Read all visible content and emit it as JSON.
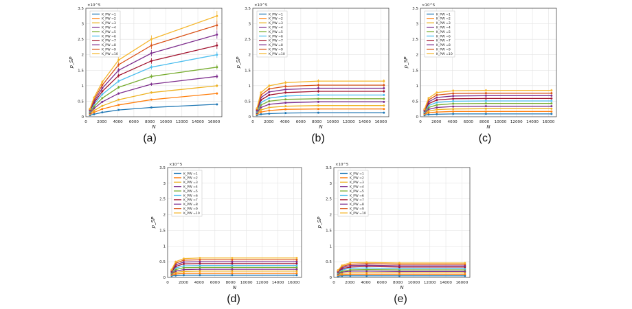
{
  "figure": {
    "x_label": "N",
    "y_label": "p_SP",
    "exponent_label": "×10^5",
    "series_prefix": "K_PW",
    "legend_names": [
      "=1",
      "=2",
      "=3",
      "=4",
      "=5",
      "=6",
      "=7",
      "=8",
      "=9",
      "=10"
    ],
    "colors": [
      "#1f77b4",
      "#ff7f0e",
      "#edb120",
      "#7e2f8e",
      "#77ac30",
      "#4dbeee",
      "#a2142f",
      "#7e2f8e",
      "#d95319",
      "#f5b72f"
    ]
  },
  "chart_data": [
    {
      "panel": "(a)",
      "type": "line",
      "xlabel": "N",
      "ylabel": "p_SP",
      "x": [
        512,
        1024,
        2048,
        4096,
        8192,
        16384
      ],
      "xlim": [
        0,
        17000
      ],
      "ylim": [
        0,
        3.5
      ],
      "xticks": [
        0,
        2000,
        4000,
        6000,
        8000,
        10000,
        12000,
        14000,
        16000
      ],
      "yticks": [
        0,
        0.5,
        1,
        1.5,
        2,
        2.5,
        3,
        3.5
      ],
      "series": [
        {
          "name": "K_PW =1",
          "values": [
            0.05,
            0.08,
            0.14,
            0.22,
            0.3,
            0.4
          ]
        },
        {
          "name": "K_PW =2",
          "values": [
            0.08,
            0.14,
            0.25,
            0.38,
            0.55,
            0.75
          ]
        },
        {
          "name": "K_PW =3",
          "values": [
            0.1,
            0.2,
            0.35,
            0.55,
            0.78,
            1.0
          ]
        },
        {
          "name": "K_PW =4",
          "values": [
            0.12,
            0.27,
            0.48,
            0.75,
            1.05,
            1.3
          ]
        },
        {
          "name": "K_PW =5",
          "values": [
            0.15,
            0.33,
            0.6,
            0.95,
            1.3,
            1.6
          ]
        },
        {
          "name": "K_PW =6",
          "values": [
            0.18,
            0.4,
            0.72,
            1.15,
            1.6,
            2.0
          ]
        },
        {
          "name": "K_PW =7",
          "values": [
            0.2,
            0.45,
            0.82,
            1.33,
            1.8,
            2.3
          ]
        },
        {
          "name": "K_PW =8",
          "values": [
            0.22,
            0.5,
            0.92,
            1.5,
            2.05,
            2.65
          ]
        },
        {
          "name": "K_PW =9",
          "values": [
            0.24,
            0.56,
            1.02,
            1.68,
            2.3,
            2.95
          ]
        },
        {
          "name": "K_PW =10",
          "values": [
            0.26,
            0.62,
            1.12,
            1.83,
            2.5,
            3.25
          ]
        }
      ]
    },
    {
      "panel": "(b)",
      "type": "line",
      "xlabel": "N",
      "ylabel": "p_SP",
      "x": [
        512,
        1024,
        2048,
        4096,
        8192,
        16384
      ],
      "xlim": [
        0,
        17000
      ],
      "ylim": [
        0,
        3.5
      ],
      "xticks": [
        0,
        2000,
        4000,
        6000,
        8000,
        10000,
        12000,
        14000,
        16000
      ],
      "yticks": [
        0,
        0.5,
        1,
        1.5,
        2,
        2.5,
        3,
        3.5
      ],
      "series": [
        {
          "name": "K_PW =1",
          "values": [
            0.05,
            0.08,
            0.1,
            0.12,
            0.13,
            0.13
          ]
        },
        {
          "name": "K_PW =2",
          "values": [
            0.08,
            0.15,
            0.2,
            0.24,
            0.25,
            0.25
          ]
        },
        {
          "name": "K_PW =3",
          "values": [
            0.1,
            0.22,
            0.3,
            0.34,
            0.36,
            0.36
          ]
        },
        {
          "name": "K_PW =4",
          "values": [
            0.12,
            0.3,
            0.4,
            0.45,
            0.48,
            0.48
          ]
        },
        {
          "name": "K_PW =5",
          "values": [
            0.15,
            0.38,
            0.5,
            0.56,
            0.58,
            0.58
          ]
        },
        {
          "name": "K_PW =6",
          "values": [
            0.17,
            0.46,
            0.6,
            0.67,
            0.7,
            0.7
          ]
        },
        {
          "name": "K_PW =7",
          "values": [
            0.2,
            0.54,
            0.7,
            0.78,
            0.82,
            0.82
          ]
        },
        {
          "name": "K_PW =8",
          "values": [
            0.22,
            0.62,
            0.8,
            0.88,
            0.92,
            0.92
          ]
        },
        {
          "name": "K_PW =9",
          "values": [
            0.25,
            0.7,
            0.9,
            0.98,
            1.02,
            1.02
          ]
        },
        {
          "name": "K_PW =10",
          "values": [
            0.27,
            0.78,
            1.0,
            1.1,
            1.15,
            1.15
          ]
        }
      ]
    },
    {
      "panel": "(c)",
      "type": "line",
      "xlabel": "N",
      "ylabel": "p_SP",
      "x": [
        512,
        1024,
        2048,
        4096,
        8192,
        16384
      ],
      "xlim": [
        0,
        17000
      ],
      "ylim": [
        0,
        3.5
      ],
      "xticks": [
        0,
        2000,
        4000,
        6000,
        8000,
        10000,
        12000,
        14000,
        16000
      ],
      "yticks": [
        0,
        0.5,
        1,
        1.5,
        2,
        2.5,
        3,
        3.5
      ],
      "series": [
        {
          "name": "K_PW =1",
          "values": [
            0.05,
            0.07,
            0.08,
            0.09,
            0.09,
            0.09
          ]
        },
        {
          "name": "K_PW =2",
          "values": [
            0.08,
            0.13,
            0.15,
            0.17,
            0.17,
            0.17
          ]
        },
        {
          "name": "K_PW =3",
          "values": [
            0.1,
            0.18,
            0.23,
            0.25,
            0.26,
            0.26
          ]
        },
        {
          "name": "K_PW =4",
          "values": [
            0.12,
            0.24,
            0.3,
            0.33,
            0.34,
            0.34
          ]
        },
        {
          "name": "K_PW =5",
          "values": [
            0.14,
            0.3,
            0.38,
            0.42,
            0.43,
            0.43
          ]
        },
        {
          "name": "K_PW =6",
          "values": [
            0.16,
            0.36,
            0.46,
            0.5,
            0.51,
            0.51
          ]
        },
        {
          "name": "K_PW =7",
          "values": [
            0.19,
            0.42,
            0.54,
            0.58,
            0.59,
            0.59
          ]
        },
        {
          "name": "K_PW =8",
          "values": [
            0.21,
            0.48,
            0.62,
            0.67,
            0.68,
            0.68
          ]
        },
        {
          "name": "K_PW =9",
          "values": [
            0.23,
            0.54,
            0.7,
            0.75,
            0.76,
            0.76
          ]
        },
        {
          "name": "K_PW =10",
          "values": [
            0.25,
            0.6,
            0.78,
            0.84,
            0.85,
            0.85
          ]
        }
      ]
    },
    {
      "panel": "(d)",
      "type": "line",
      "xlabel": "N",
      "ylabel": "p_SP",
      "x": [
        512,
        1024,
        2048,
        4096,
        8192,
        16384
      ],
      "xlim": [
        0,
        17000
      ],
      "ylim": [
        0,
        3.5
      ],
      "xticks": [
        0,
        2000,
        4000,
        6000,
        8000,
        10000,
        12000,
        14000,
        16000
      ],
      "yticks": [
        0,
        0.5,
        1,
        1.5,
        2,
        2.5,
        3,
        3.5
      ],
      "series": [
        {
          "name": "K_PW =1",
          "values": [
            0.05,
            0.06,
            0.07,
            0.07,
            0.07,
            0.07
          ]
        },
        {
          "name": "K_PW =2",
          "values": [
            0.08,
            0.11,
            0.13,
            0.13,
            0.13,
            0.13
          ]
        },
        {
          "name": "K_PW =3",
          "values": [
            0.1,
            0.16,
            0.19,
            0.2,
            0.2,
            0.2
          ]
        },
        {
          "name": "K_PW =4",
          "values": [
            0.12,
            0.2,
            0.25,
            0.26,
            0.26,
            0.26
          ]
        },
        {
          "name": "K_PW =5",
          "values": [
            0.14,
            0.25,
            0.31,
            0.32,
            0.32,
            0.32
          ]
        },
        {
          "name": "K_PW =6",
          "values": [
            0.16,
            0.3,
            0.37,
            0.38,
            0.38,
            0.38
          ]
        },
        {
          "name": "K_PW =7",
          "values": [
            0.18,
            0.35,
            0.43,
            0.44,
            0.44,
            0.44
          ]
        },
        {
          "name": "K_PW =8",
          "values": [
            0.21,
            0.4,
            0.49,
            0.5,
            0.5,
            0.5
          ]
        },
        {
          "name": "K_PW =9",
          "values": [
            0.23,
            0.45,
            0.55,
            0.56,
            0.56,
            0.56
          ]
        },
        {
          "name": "K_PW =10",
          "values": [
            0.25,
            0.5,
            0.6,
            0.62,
            0.62,
            0.62
          ]
        }
      ]
    },
    {
      "panel": "(e)",
      "type": "line",
      "xlabel": "N",
      "ylabel": "p_SP",
      "x": [
        512,
        1024,
        2048,
        4096,
        8192,
        16384
      ],
      "xlim": [
        0,
        17000
      ],
      "ylim": [
        0,
        3.5
      ],
      "xticks": [
        0,
        2000,
        4000,
        6000,
        8000,
        10000,
        12000,
        14000,
        16000
      ],
      "yticks": [
        0,
        0.5,
        1,
        1.5,
        2,
        2.5,
        3,
        3.5
      ],
      "series": [
        {
          "name": "K_PW =1",
          "values": [
            0.04,
            0.05,
            0.05,
            0.05,
            0.05,
            0.05
          ]
        },
        {
          "name": "K_PW =2",
          "values": [
            0.07,
            0.09,
            0.1,
            0.1,
            0.1,
            0.1
          ]
        },
        {
          "name": "K_PW =3",
          "values": [
            0.09,
            0.13,
            0.15,
            0.15,
            0.15,
            0.15
          ]
        },
        {
          "name": "K_PW =4",
          "values": [
            0.11,
            0.17,
            0.2,
            0.2,
            0.19,
            0.19
          ]
        },
        {
          "name": "K_PW =5",
          "values": [
            0.13,
            0.2,
            0.24,
            0.25,
            0.24,
            0.24
          ]
        },
        {
          "name": "K_PW =6",
          "values": [
            0.15,
            0.24,
            0.29,
            0.3,
            0.28,
            0.28
          ]
        },
        {
          "name": "K_PW =7",
          "values": [
            0.17,
            0.28,
            0.33,
            0.35,
            0.33,
            0.33
          ]
        },
        {
          "name": "K_PW =8",
          "values": [
            0.19,
            0.31,
            0.38,
            0.39,
            0.37,
            0.37
          ]
        },
        {
          "name": "K_PW =9",
          "values": [
            0.21,
            0.35,
            0.42,
            0.44,
            0.42,
            0.42
          ]
        },
        {
          "name": "K_PW =10",
          "values": [
            0.23,
            0.38,
            0.47,
            0.48,
            0.46,
            0.46
          ]
        }
      ]
    }
  ]
}
